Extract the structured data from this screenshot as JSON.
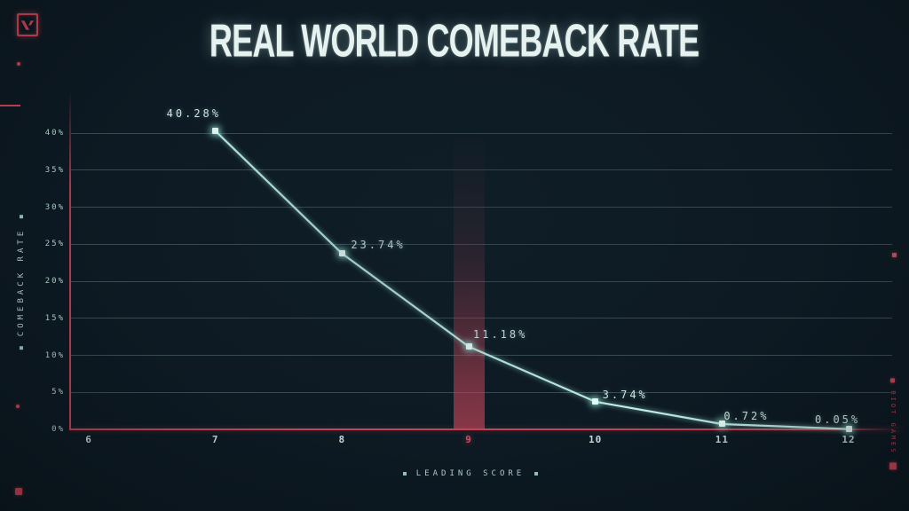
{
  "meta": {
    "colors": {
      "background": "#0d1a23",
      "accent_red": "#d9485c",
      "line_cyan": "#bdeee6",
      "label_text": "#cfe9e3",
      "tick_text": "#b9d6d1",
      "title_text": "#e6f2f0",
      "band_red": "#d6485c"
    }
  },
  "header": {
    "title": "REAL WORLD COMEBACK RATE"
  },
  "branding": {
    "logo": "valorant-logo",
    "watermark": "RIOT GAMES"
  },
  "chart_data": {
    "type": "line",
    "title": "REAL WORLD COMEBACK RATE",
    "xlabel": "LEADING SCORE",
    "ylabel": "COMEBACK RATE",
    "series_name": "comeback-rate",
    "x": [
      7,
      8,
      9,
      10,
      11,
      12
    ],
    "values": [
      40.28,
      23.74,
      11.18,
      3.74,
      0.72,
      0.05
    ],
    "point_labels": [
      "40.28%",
      "23.74%",
      "11.18%",
      "3.74%",
      "0.72%",
      "0.05%"
    ],
    "x_ticks": [
      6,
      7,
      8,
      9,
      10,
      11,
      12
    ],
    "y_ticks_pct": [
      40,
      35,
      30,
      25,
      20,
      15,
      10,
      5,
      0
    ],
    "y_tick_labels": [
      "40%",
      "35%",
      "30%",
      "25%",
      "20%",
      "15%",
      "10%",
      "5%",
      "0%"
    ],
    "xlim": [
      6,
      12.35
    ],
    "ylim": [
      0,
      42
    ],
    "grid": true,
    "legend_position": "none",
    "highlighted_x": 9
  }
}
